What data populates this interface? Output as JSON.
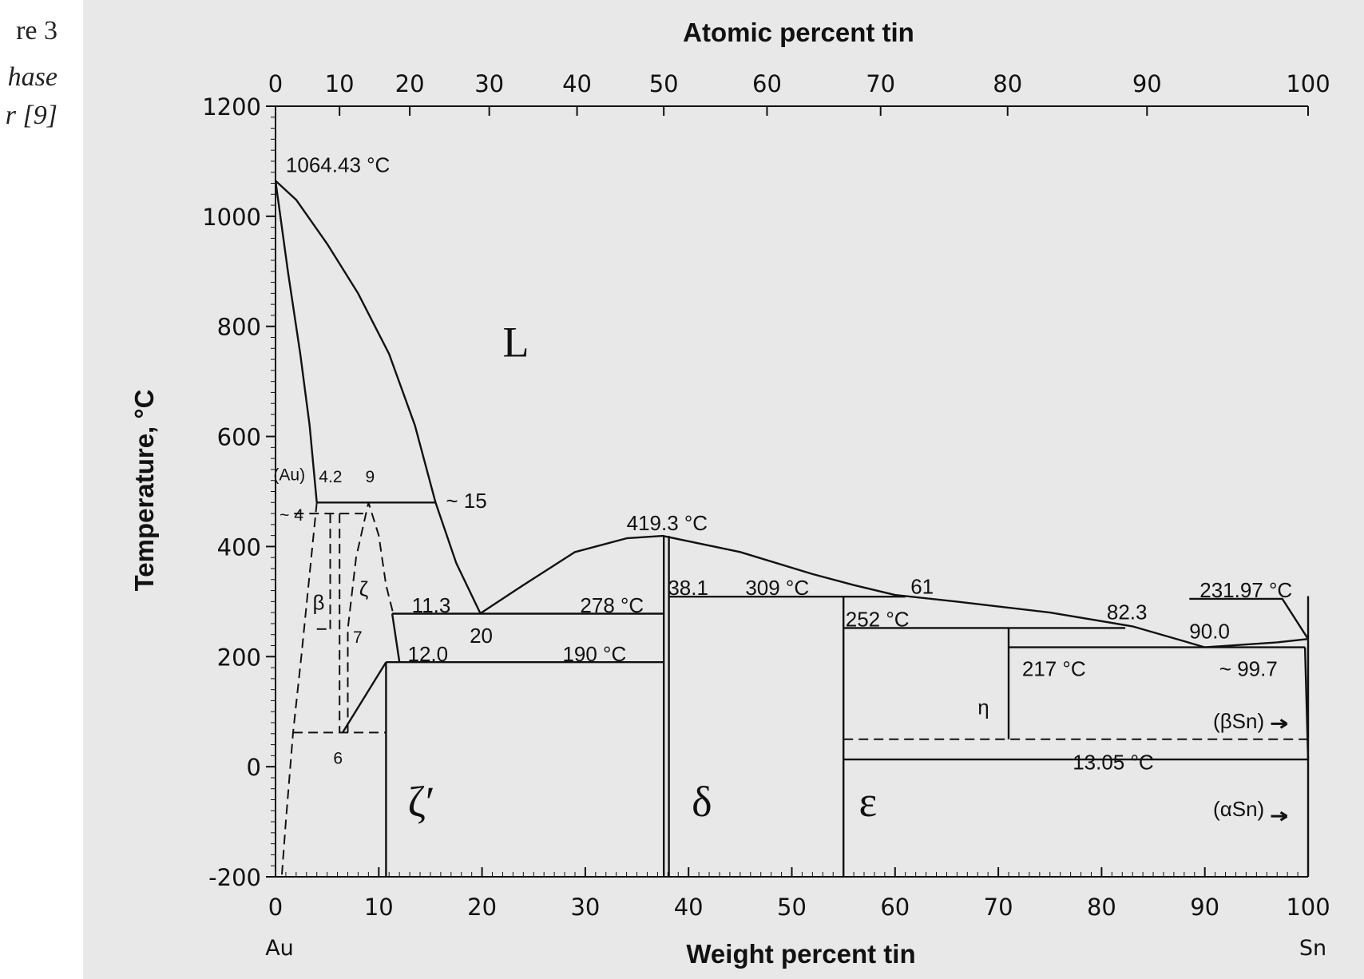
{
  "fragment": {
    "line1": "re 3",
    "line2": "hase",
    "line3": "r [9]"
  },
  "chart_data": {
    "type": "phase-diagram",
    "title": "",
    "top_axis": {
      "label": "Atomic percent tin",
      "ticks": [
        0,
        10,
        20,
        30,
        40,
        50,
        60,
        70,
        80,
        90,
        100
      ],
      "weight_pct_of_ticks": [
        0,
        6.2,
        13.0,
        20.7,
        29.2,
        37.6,
        47.6,
        58.6,
        70.9,
        84.4,
        100
      ]
    },
    "bottom_axis": {
      "label": "Weight percent tin",
      "ticks": [
        0,
        10,
        20,
        30,
        40,
        50,
        60,
        70,
        80,
        90,
        100
      ],
      "range": [
        0,
        100
      ],
      "end_labels": {
        "left": "Au",
        "right": "Sn"
      }
    },
    "y_axis": {
      "label": "Temperature, °C",
      "ticks": [
        -200,
        0,
        200,
        400,
        600,
        800,
        1000,
        1200
      ],
      "range": [
        -200,
        1200
      ]
    },
    "colors": {
      "background": "#e8e8e8",
      "line": "#111111"
    },
    "solid_lines": [
      {
        "name": "liquidus-au-side",
        "points": [
          [
            0,
            1064.43
          ],
          [
            2,
            1030
          ],
          [
            5,
            950
          ],
          [
            8,
            860
          ],
          [
            11,
            750
          ],
          [
            13.5,
            620
          ],
          [
            15.5,
            480
          ],
          [
            17.5,
            370
          ],
          [
            19.8,
            280
          ]
        ]
      },
      {
        "name": "solidus-au",
        "points": [
          [
            0,
            1064.43
          ],
          [
            1.2,
            900
          ],
          [
            2.4,
            750
          ],
          [
            3.3,
            620
          ],
          [
            4,
            480
          ]
        ]
      },
      {
        "name": "liquidus-delta",
        "points": [
          [
            19.8,
            278
          ],
          [
            24,
            330
          ],
          [
            29,
            390
          ],
          [
            34,
            415
          ],
          [
            37.5,
            419.3
          ],
          [
            45,
            390
          ],
          [
            52,
            350
          ],
          [
            56,
            330
          ],
          [
            60,
            312
          ],
          [
            66,
            300
          ],
          [
            75,
            280
          ],
          [
            83,
            255
          ],
          [
            88,
            228
          ],
          [
            90,
            217
          ]
        ]
      },
      {
        "name": "liquidus-sn",
        "points": [
          [
            90,
            217
          ],
          [
            94,
            222
          ],
          [
            97,
            226
          ],
          [
            100,
            231.97
          ]
        ]
      },
      {
        "name": "sn-melting",
        "points": [
          [
            88.5,
            305
          ],
          [
            97.5,
            305
          ],
          [
            100,
            231.97
          ]
        ]
      },
      {
        "name": "peritectic-498",
        "points": [
          [
            4,
            480
          ],
          [
            15.5,
            480
          ]
        ]
      },
      {
        "name": "eutectic-278",
        "points": [
          [
            11.3,
            278
          ],
          [
            37.6,
            278
          ]
        ]
      },
      {
        "name": "zeta-boundary",
        "points": [
          [
            11.3,
            278
          ],
          [
            12,
            190
          ]
        ]
      },
      {
        "name": "line-190",
        "points": [
          [
            10.7,
            190
          ],
          [
            37.6,
            190
          ]
        ]
      },
      {
        "name": "zeta-prime-solvus",
        "points": [
          [
            6.5,
            62
          ],
          [
            10.7,
            190
          ]
        ]
      },
      {
        "name": "delta-left",
        "points": [
          [
            37.6,
            419.3
          ],
          [
            37.6,
            -200
          ]
        ]
      },
      {
        "name": "delta-right",
        "points": [
          [
            38.1,
            419.3
          ],
          [
            38.1,
            -200
          ]
        ]
      },
      {
        "name": "zeta-prime-boundary",
        "points": [
          [
            10.7,
            190
          ],
          [
            10.7,
            -200
          ]
        ]
      },
      {
        "name": "peritectic-309",
        "points": [
          [
            38.1,
            309
          ],
          [
            61,
            309
          ]
        ]
      },
      {
        "name": "eps-left",
        "points": [
          [
            55,
            309
          ],
          [
            55,
            -200
          ]
        ]
      },
      {
        "name": "peritectic-252",
        "points": [
          [
            55,
            252
          ],
          [
            82.3,
            252
          ]
        ]
      },
      {
        "name": "eutectic-217",
        "points": [
          [
            71,
            217
          ],
          [
            99.7,
            217
          ]
        ]
      },
      {
        "name": "eta-boundary",
        "points": [
          [
            71,
            252
          ],
          [
            71,
            50
          ]
        ]
      },
      {
        "name": "line-13",
        "points": [
          [
            55,
            13.05
          ],
          [
            100,
            13.05
          ]
        ]
      },
      {
        "name": "sn-boundary",
        "points": [
          [
            99.7,
            217
          ],
          [
            100,
            13.05
          ]
        ]
      },
      {
        "name": "sn-axis",
        "points": [
          [
            100,
            231.97
          ],
          [
            100,
            -200
          ]
        ]
      },
      {
        "name": "sn-axis-top",
        "points": [
          [
            100,
            310
          ],
          [
            100,
            231.97
          ]
        ]
      }
    ],
    "dashed_lines": [
      {
        "name": "au-solvus",
        "points": [
          [
            4,
            480
          ],
          [
            3.3,
            350
          ],
          [
            2.5,
            200
          ],
          [
            1.7,
            62
          ],
          [
            1,
            -100
          ],
          [
            0.6,
            -200
          ]
        ]
      },
      {
        "name": "beta-top",
        "points": [
          [
            1.8,
            460
          ],
          [
            8.5,
            460
          ]
        ]
      },
      {
        "name": "beta-left",
        "points": [
          [
            5.3,
            460
          ],
          [
            5.3,
            250
          ]
        ]
      },
      {
        "name": "beta-bottom",
        "points": [
          [
            4,
            250
          ],
          [
            5.3,
            250
          ]
        ]
      },
      {
        "name": "beta-right",
        "points": [
          [
            6.2,
            460
          ],
          [
            6.2,
            62
          ]
        ]
      },
      {
        "name": "zeta-dome",
        "points": [
          [
            7,
            62
          ],
          [
            7,
            250
          ],
          [
            7.8,
            380
          ],
          [
            9,
            480
          ],
          [
            10,
            420
          ],
          [
            10.7,
            330
          ],
          [
            11.4,
            278
          ]
        ]
      },
      {
        "name": "line-62",
        "points": [
          [
            1.7,
            62
          ],
          [
            10.7,
            62
          ]
        ]
      },
      {
        "name": "line-50",
        "points": [
          [
            55,
            50
          ],
          [
            100,
            50
          ]
        ]
      }
    ],
    "labels": [
      {
        "text": "1064.43 °C",
        "x": 1,
        "y": 1080,
        "size": "lg"
      },
      {
        "text": "L",
        "x": 22,
        "y": 745,
        "size": "xl"
      },
      {
        "text": "(Au)",
        "x": -0.2,
        "y": 520
      },
      {
        "text": "4.2",
        "x": 4.2,
        "y": 517
      },
      {
        "text": "9",
        "x": 8.7,
        "y": 517
      },
      {
        "text": "~ 15",
        "x": 16.5,
        "y": 470,
        "size": "lg"
      },
      {
        "text": "~ 4",
        "x": 0.4,
        "y": 447
      },
      {
        "text": "β",
        "x": 3.6,
        "y": 285,
        "size": "lg"
      },
      {
        "text": "ζ",
        "x": 8.1,
        "y": 310,
        "size": "lg"
      },
      {
        "text": "7",
        "x": 7.5,
        "y": 225
      },
      {
        "text": "6",
        "x": 5.6,
        "y": 5
      },
      {
        "text": "11.3",
        "x": 13.2,
        "y": 280,
        "size": "lg"
      },
      {
        "text": "278 °C",
        "x": 29.5,
        "y": 280,
        "size": "lg"
      },
      {
        "text": "20",
        "x": 18.8,
        "y": 225,
        "size": "lg"
      },
      {
        "text": "12.0",
        "x": 12.8,
        "y": 192,
        "size": "lg"
      },
      {
        "text": "190 °C",
        "x": 27.8,
        "y": 192,
        "size": "lg"
      },
      {
        "text": "419.3 °C",
        "x": 34,
        "y": 430,
        "size": "lg"
      },
      {
        "text": "38.1",
        "x": 38,
        "y": 312,
        "size": "lg"
      },
      {
        "text": "309 °C",
        "x": 45.5,
        "y": 312,
        "size": "lg"
      },
      {
        "text": "61",
        "x": 61.5,
        "y": 314,
        "size": "lg"
      },
      {
        "text": "252 °C",
        "x": 55.2,
        "y": 255,
        "size": "lg"
      },
      {
        "text": "82.3",
        "x": 80.5,
        "y": 268,
        "size": "lg"
      },
      {
        "text": "90.0",
        "x": 88.5,
        "y": 233,
        "size": "lg"
      },
      {
        "text": "231.97 °C",
        "x": 89.5,
        "y": 308,
        "size": "lg"
      },
      {
        "text": "217 °C",
        "x": 72.3,
        "y": 165,
        "size": "lg"
      },
      {
        "text": "~ 99.7",
        "x": 91.4,
        "y": 165,
        "size": "lg"
      },
      {
        "text": "η",
        "x": 68,
        "y": 95,
        "size": "lg"
      },
      {
        "text": "(βSn)",
        "x": 90.8,
        "y": 70,
        "size": "lg"
      },
      {
        "text": "13.05 °C",
        "x": 77.2,
        "y": -5,
        "size": "lg"
      },
      {
        "text": "ζ′",
        "x": 12.8,
        "y": -90,
        "size": "xl"
      },
      {
        "text": "δ",
        "x": 40.3,
        "y": -90,
        "size": "xl"
      },
      {
        "text": "ε",
        "x": 56.5,
        "y": -90,
        "size": "xl"
      },
      {
        "text": "(αSn)",
        "x": 90.8,
        "y": -90,
        "size": "lg"
      }
    ],
    "arrows": [
      {
        "name": "beta-sn-arrow",
        "x": 97.8,
        "y": 78
      },
      {
        "name": "alpha-sn-arrow",
        "x": 97.8,
        "y": -90
      }
    ]
  }
}
